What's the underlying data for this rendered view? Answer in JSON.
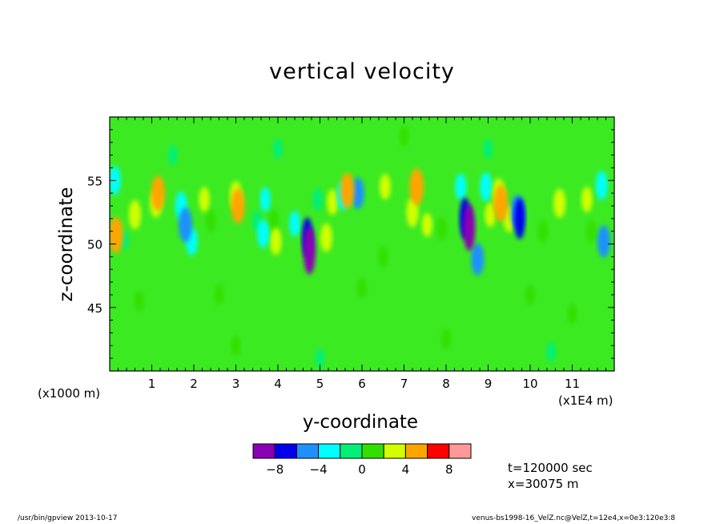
{
  "chart_data": {
    "type": "heatmap",
    "title": "vertical velocity",
    "xlabel": "y-coordinate",
    "ylabel": "z-coordinate",
    "x_units": "(x1E4 m)",
    "y_units": "(x1000 m)",
    "xlim": [
      0,
      12
    ],
    "ylim": [
      40,
      60
    ],
    "x_ticks": [
      "1",
      "2",
      "3",
      "4",
      "5",
      "6",
      "7",
      "8",
      "9",
      "10",
      "11"
    ],
    "y_ticks": [
      "45",
      "50",
      "55"
    ],
    "colorbar": {
      "levels": [
        -10,
        -8,
        -6,
        -4,
        -2,
        0,
        2,
        4,
        6,
        8,
        10
      ],
      "tick_labels": [
        "-8",
        "-4",
        "0",
        "4",
        "8"
      ],
      "colors": [
        "#8a00b4",
        "#0000ee",
        "#1e90ff",
        "#00ffff",
        "#00f078",
        "#32e000",
        "#d2ff00",
        "#ffa500",
        "#ff0000",
        "#ff9999"
      ]
    },
    "background_color": "#3cea22",
    "features": [
      {
        "y": 0.35,
        "z": 50.3,
        "w": -1.0
      },
      {
        "y": 0.6,
        "z": 52.3,
        "w": 3.6
      },
      {
        "y": 0.15,
        "z": 50.7,
        "w": 5.6
      },
      {
        "y": 0.12,
        "z": 55.0,
        "w": -3.5
      },
      {
        "y": 1.1,
        "z": 53.2,
        "w": 3.4
      },
      {
        "y": 1.15,
        "z": 54.0,
        "w": 5.2
      },
      {
        "y": 1.7,
        "z": 53.0,
        "w": -3.4
      },
      {
        "y": 1.8,
        "z": 51.5,
        "w": -5.2
      },
      {
        "y": 1.95,
        "z": 50.2,
        "w": -3.2
      },
      {
        "y": 2.25,
        "z": 53.5,
        "w": 2.3
      },
      {
        "y": 2.4,
        "z": 51.8,
        "w": 1.8
      },
      {
        "y": 3.0,
        "z": 53.8,
        "w": 3.6
      },
      {
        "y": 3.05,
        "z": 53.0,
        "w": 5.2
      },
      {
        "y": 3.5,
        "z": 51.8,
        "w": -1.2
      },
      {
        "y": 3.65,
        "z": 50.8,
        "w": -3.4
      },
      {
        "y": 3.7,
        "z": 53.5,
        "w": -2.2
      },
      {
        "y": 3.95,
        "z": 50.2,
        "w": 3.0
      },
      {
        "y": 3.9,
        "z": 51.8,
        "w": 1.9
      },
      {
        "y": 4.4,
        "z": 51.6,
        "w": -2.6
      },
      {
        "y": 4.7,
        "z": 50.5,
        "w": -6.8
      },
      {
        "y": 4.75,
        "z": 49.5,
        "w": -9.0
      },
      {
        "y": 4.95,
        "z": 53.5,
        "w": -1.8
      },
      {
        "y": 5.15,
        "z": 50.5,
        "w": 3.4
      },
      {
        "y": 5.3,
        "z": 53.3,
        "w": 2.6
      },
      {
        "y": 5.55,
        "z": 53.8,
        "w": -3.6
      },
      {
        "y": 5.65,
        "z": 54.2,
        "w": 5.4
      },
      {
        "y": 5.9,
        "z": 54.0,
        "w": -4.2
      },
      {
        "y": 6.55,
        "z": 54.5,
        "w": 2.6
      },
      {
        "y": 6.5,
        "z": 49.0,
        "w": 1.6
      },
      {
        "y": 7.2,
        "z": 52.5,
        "w": 3.8
      },
      {
        "y": 7.3,
        "z": 54.5,
        "w": 5.8
      },
      {
        "y": 7.55,
        "z": 51.5,
        "w": 2.0
      },
      {
        "y": 7.9,
        "z": 51.2,
        "w": 1.9
      },
      {
        "y": 8.35,
        "z": 54.5,
        "w": -2.8
      },
      {
        "y": 8.45,
        "z": 52.0,
        "w": -7.2
      },
      {
        "y": 8.55,
        "z": 51.3,
        "w": -8.6
      },
      {
        "y": 8.75,
        "z": 48.8,
        "w": -4.4
      },
      {
        "y": 8.95,
        "z": 54.5,
        "w": -3.6
      },
      {
        "y": 9.05,
        "z": 52.3,
        "w": 2.3
      },
      {
        "y": 9.25,
        "z": 54.0,
        "w": 3.8
      },
      {
        "y": 9.3,
        "z": 53.2,
        "w": 5.8
      },
      {
        "y": 9.5,
        "z": 52.0,
        "w": 3.0
      },
      {
        "y": 9.7,
        "z": 52.5,
        "w": -5.2
      },
      {
        "y": 9.75,
        "z": 52.0,
        "w": -7.0
      },
      {
        "y": 10.3,
        "z": 51.0,
        "w": 1.8
      },
      {
        "y": 10.7,
        "z": 53.2,
        "w": 3.6
      },
      {
        "y": 11.35,
        "z": 53.5,
        "w": 2.5
      },
      {
        "y": 11.45,
        "z": 51.0,
        "w": 1.7
      },
      {
        "y": 11.75,
        "z": 50.2,
        "w": -4.4
      },
      {
        "y": 11.7,
        "z": 54.6,
        "w": -3.6
      },
      {
        "y": 0.7,
        "z": 45.5,
        "w": 1.3
      },
      {
        "y": 2.6,
        "z": 46.0,
        "w": 1.2
      },
      {
        "y": 6.0,
        "z": 46.5,
        "w": 1.4
      },
      {
        "y": 10.0,
        "z": 46.0,
        "w": 1.3
      },
      {
        "y": 11.0,
        "z": 44.5,
        "w": 1.2
      },
      {
        "y": 1.5,
        "z": 57.0,
        "w": -1.0
      },
      {
        "y": 4.0,
        "z": 57.5,
        "w": -1.1
      },
      {
        "y": 7.0,
        "z": 58.5,
        "w": 1.2
      },
      {
        "y": 9.0,
        "z": 57.5,
        "w": -1.0
      },
      {
        "y": 3.0,
        "z": 42.0,
        "w": 1.2
      },
      {
        "y": 8.0,
        "z": 42.5,
        "w": 1.3
      },
      {
        "y": 5.0,
        "z": 41.0,
        "w": -1.0
      },
      {
        "y": 10.5,
        "z": 41.5,
        "w": -1.0
      }
    ]
  },
  "annotations": {
    "time": "t=120000 sec",
    "position": "x=30075 m"
  },
  "footer": {
    "left": "/usr/bin/gpview   2013-10-17",
    "right": "venus-bs1998-16_VelZ.nc@VelZ,t=12e4,x=0e3:120e3:8"
  }
}
